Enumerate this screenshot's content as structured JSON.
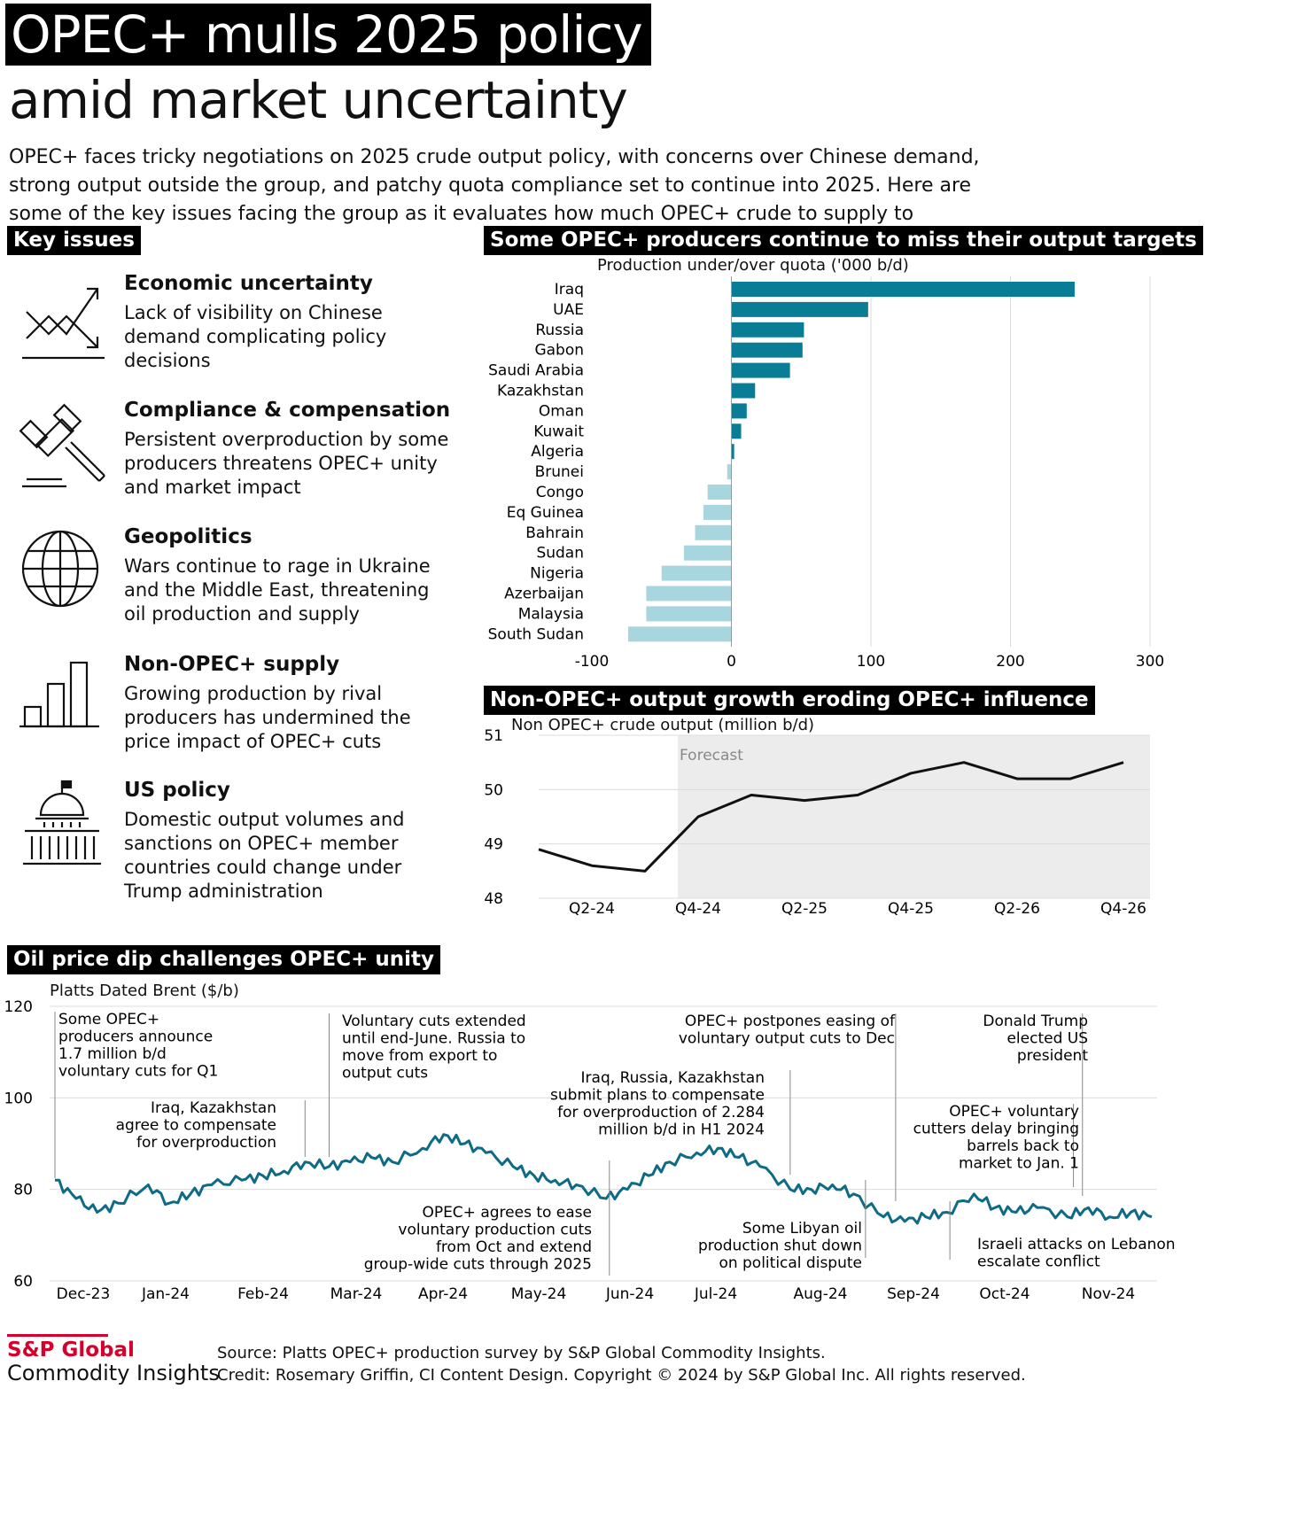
{
  "header": {
    "title_line1": "OPEC+ mulls 2025 policy",
    "title_line2": "amid market uncertainty",
    "intro": "OPEC+ faces tricky negotiations on 2025 crude output policy, with concerns over Chinese demand, strong output outside the group, and patchy quota compliance set to continue into 2025. Here are some of the key issues facing the group as it evaluates how much OPEC+ crude to supply to market."
  },
  "key_issues": {
    "heading": "Key issues",
    "items": [
      {
        "title": "Economic uncertainty",
        "desc": "Lack of visibility on Chinese demand complicating policy decisions",
        "icon": "trend-arrows-icon"
      },
      {
        "title": "Compliance & compensation",
        "desc": "Persistent overproduction by some producers threatens OPEC+ unity and market impact",
        "icon": "gavel-icon"
      },
      {
        "title": "Geopolitics",
        "desc": "Wars continue to rage in Ukraine and the Middle East, threatening oil production and supply",
        "icon": "globe-icon"
      },
      {
        "title": "Non-OPEC+ supply",
        "desc": "Growing production by rival producers has undermined the price impact of OPEC+ cuts",
        "icon": "bar-chart-icon"
      },
      {
        "title": "US policy",
        "desc": "Domestic output volumes and sanctions on OPEC+ member countries could change under Trump administration",
        "icon": "capitol-icon"
      }
    ]
  },
  "colors": {
    "over_quota": "#0a7d96",
    "under_quota": "#a8d6df",
    "line": "#111111",
    "price_line": "#0e6b85",
    "forecast_bg": "#ececec",
    "brand_red": "#d6002a"
  },
  "chart_data": [
    {
      "id": "quota",
      "type": "bar",
      "orientation": "horizontal",
      "title": "Some OPEC+ producers continue to miss their output targets",
      "subtitle": "Production under/over quota ('000 b/d)",
      "categories": [
        "Iraq",
        "UAE",
        "Russia",
        "Gabon",
        "Saudi Arabia",
        "Kazakhstan",
        "Oman",
        "Kuwait",
        "Algeria",
        "Brunei",
        "Congo",
        "Eq Guinea",
        "Bahrain",
        "Sudan",
        "Nigeria",
        "Azerbaijan",
        "Malaysia",
        "South Sudan"
      ],
      "values": [
        246,
        98,
        52,
        51,
        42,
        17,
        11,
        7,
        2,
        -3,
        -17,
        -20,
        -26,
        -34,
        -50,
        -61,
        -61,
        -74
      ],
      "xlim": [
        -100,
        300
      ],
      "xticks": [
        "-100",
        "0",
        "100",
        "200",
        "300"
      ],
      "xtick_values": [
        -100,
        0,
        100,
        200,
        300
      ]
    },
    {
      "id": "nonopec",
      "type": "line",
      "title": "Non-OPEC+ output growth eroding OPEC+ influence",
      "subtitle": "Non OPEC+ crude output (million b/d)",
      "annotation": "Forecast",
      "x": [
        "Q1-24",
        "Q2-24",
        "Q3-24",
        "Q4-24",
        "Q1-25",
        "Q2-25",
        "Q3-25",
        "Q4-25",
        "Q1-26",
        "Q2-26",
        "Q3-26",
        "Q4-26"
      ],
      "values": [
        48.9,
        48.6,
        48.5,
        49.5,
        49.9,
        49.8,
        49.9,
        50.3,
        50.5,
        50.2,
        50.2,
        50.5
      ],
      "ylim": [
        48,
        51
      ],
      "yticks": [
        "51",
        "50",
        "49",
        "48"
      ],
      "ytick_values": [
        51,
        50,
        49,
        48
      ],
      "xticks": [
        "Q2-24",
        "Q4-24",
        "Q2-25",
        "Q4-25",
        "Q2-26",
        "Q4-26"
      ],
      "forecast_start": "Q3-24"
    },
    {
      "id": "brent",
      "type": "line",
      "title": "Oil price dip challenges OPEC+ unity",
      "subtitle": "Platts Dated Brent ($/b)",
      "ylim": [
        60,
        120
      ],
      "yticks": [
        "120",
        "100",
        "80",
        "60"
      ],
      "ytick_values": [
        120,
        100,
        80,
        60
      ],
      "xticks": [
        "Dec-23",
        "Jan-24",
        "Feb-24",
        "Mar-24",
        "Apr-24",
        "May-24",
        "Jun-24",
        "Jul-24",
        "Aug-24",
        "Sep-24",
        "Oct-24",
        "Nov-24"
      ],
      "x": [
        "2023-12-01",
        "2023-12-08",
        "2023-12-15",
        "2023-12-22",
        "2024-01-01",
        "2024-01-08",
        "2024-01-15",
        "2024-01-22",
        "2024-02-01",
        "2024-02-08",
        "2024-02-15",
        "2024-02-22",
        "2024-03-01",
        "2024-03-08",
        "2024-03-15",
        "2024-03-22",
        "2024-04-01",
        "2024-04-08",
        "2024-04-15",
        "2024-04-22",
        "2024-05-01",
        "2024-05-08",
        "2024-05-15",
        "2024-05-22",
        "2024-06-01",
        "2024-06-08",
        "2024-06-15",
        "2024-06-22",
        "2024-07-01",
        "2024-07-08",
        "2024-07-15",
        "2024-07-22",
        "2024-08-01",
        "2024-08-08",
        "2024-08-15",
        "2024-08-22",
        "2024-09-01",
        "2024-09-08",
        "2024-09-15",
        "2024-09-22",
        "2024-10-01",
        "2024-10-08",
        "2024-10-15",
        "2024-10-22",
        "2024-11-01",
        "2024-11-08",
        "2024-11-15",
        "2024-11-22",
        "2024-11-29"
      ],
      "values": [
        82,
        78,
        75,
        77,
        81,
        77,
        79,
        81,
        82,
        83,
        84,
        86,
        85,
        86,
        87,
        86,
        89,
        92,
        90,
        88,
        85,
        83,
        82,
        81,
        78,
        80,
        83,
        86,
        88,
        89,
        87,
        85,
        80,
        80,
        81,
        79,
        74,
        73,
        74,
        75,
        79,
        76,
        75,
        76,
        74,
        76,
        74,
        75,
        74
      ],
      "annotations": [
        {
          "date": "2023-12-01",
          "text": [
            "Some OPEC+",
            "producers announce",
            "1.7 million b/d",
            "voluntary cuts for Q1"
          ]
        },
        {
          "date": "2024-02-22",
          "text": [
            "Iraq, Kazakhstan",
            "agree to compensate",
            "for overproduction"
          ]
        },
        {
          "date": "2024-03-01",
          "text": [
            "Voluntary cuts extended",
            "until end-June. Russia to",
            "move from export to",
            "output cuts"
          ]
        },
        {
          "date": "2024-06-02",
          "text": [
            "OPEC+ agrees to ease",
            "voluntary production cuts",
            "from Oct and extend",
            "group-wide cuts through 2025"
          ]
        },
        {
          "date": "2024-08-01",
          "text": [
            "Iraq, Russia, Kazakhstan",
            "submit plans to compensate",
            "for overproduction of 2.284",
            "million b/d in H1 2024"
          ]
        },
        {
          "date": "2024-08-26",
          "text": [
            "Some Libyan oil",
            "production shut down",
            "on political dispute"
          ]
        },
        {
          "date": "2024-09-05",
          "text": [
            "OPEC+ postpones easing of",
            "voluntary output cuts to Dec"
          ]
        },
        {
          "date": "2024-09-23",
          "text": [
            "Israeli attacks on Lebanon",
            "escalate conflict"
          ]
        },
        {
          "date": "2024-11-03",
          "text": [
            "OPEC+ voluntary",
            "cutters delay bringing",
            "barrels back to",
            "market to Jan. 1"
          ]
        },
        {
          "date": "2024-11-06",
          "text": [
            "Donald Trump",
            "elected US",
            "president"
          ]
        }
      ]
    }
  ],
  "footer": {
    "brand_line1": "S&P Global",
    "brand_line2": "Commodity Insights",
    "source": "Source: Platts OPEC+ production survey by S&P Global Commodity Insights.",
    "credit": "Credit: Rosemary Griffin, CI Content Design. Copyright © 2024 by S&P Global Inc.  All rights reserved."
  }
}
